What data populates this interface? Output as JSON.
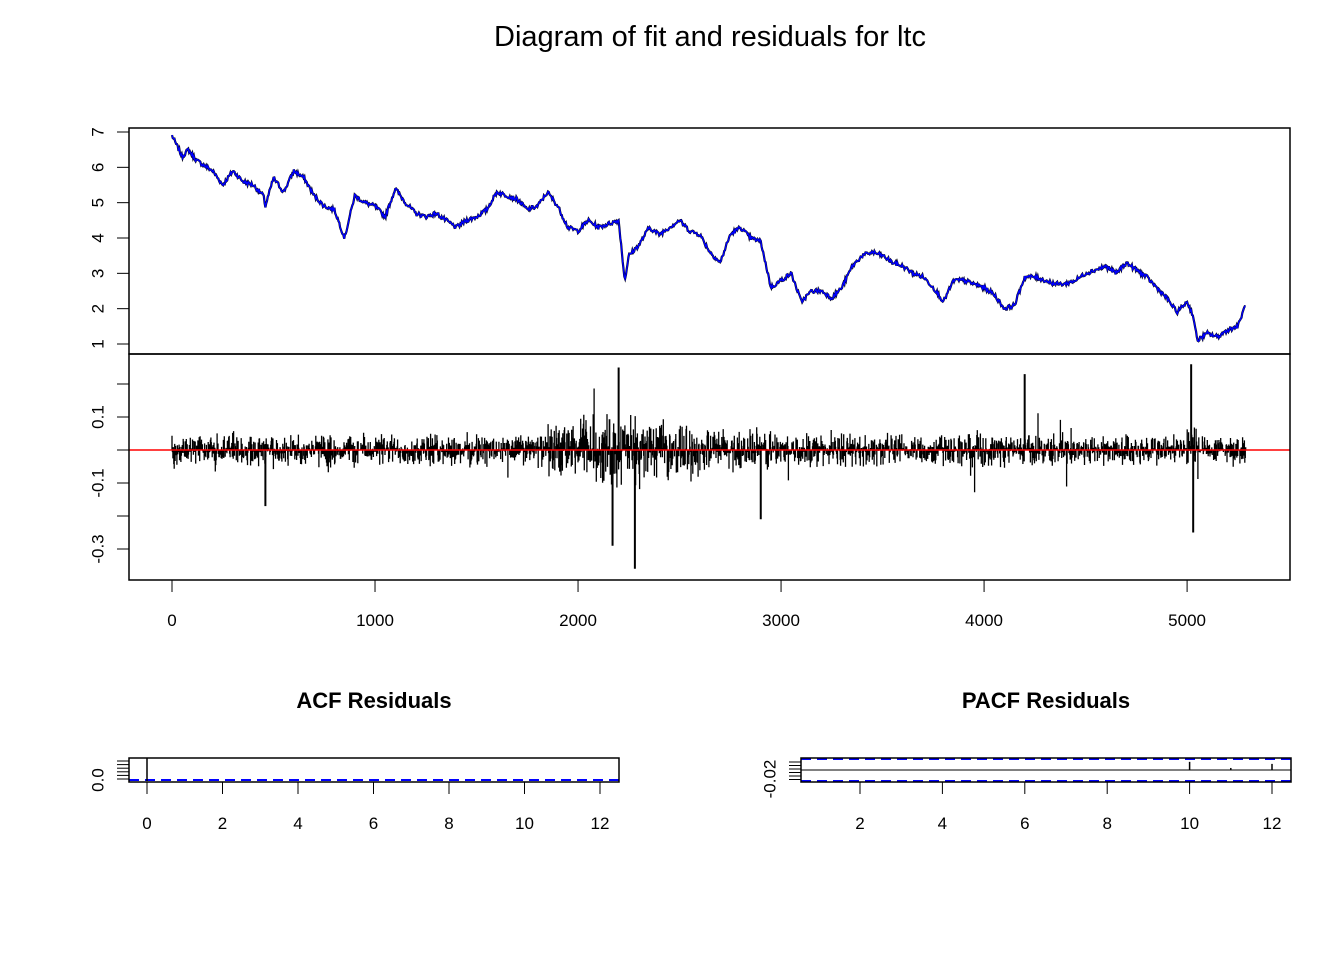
{
  "title": "Diagram of fit and residuals for ltc",
  "colors": {
    "fit": "#0000ff",
    "series": "#000000",
    "zero_line": "#ff0000",
    "ci": "#0000ff",
    "axis": "#000000"
  },
  "chart_data": [
    {
      "id": "fit",
      "type": "line",
      "xlim": [
        0,
        5300
      ],
      "ylim": [
        1,
        7
      ],
      "yticks": [
        "1",
        "2",
        "3",
        "4",
        "5",
        "6",
        "7"
      ],
      "grid": false,
      "series": [
        {
          "role": "actual",
          "color": "#000000"
        },
        {
          "role": "fitted",
          "color": "#0000ff"
        }
      ],
      "x": [
        0,
        50,
        80,
        120,
        200,
        250,
        300,
        350,
        400,
        450,
        460,
        500,
        550,
        600,
        650,
        700,
        750,
        800,
        850,
        900,
        950,
        1000,
        1050,
        1100,
        1150,
        1200,
        1250,
        1300,
        1350,
        1400,
        1450,
        1500,
        1550,
        1600,
        1650,
        1700,
        1750,
        1800,
        1850,
        1900,
        1950,
        2000,
        2050,
        2100,
        2150,
        2200,
        2230,
        2250,
        2300,
        2350,
        2400,
        2450,
        2500,
        2550,
        2600,
        2650,
        2700,
        2750,
        2800,
        2850,
        2900,
        2950,
        3000,
        3050,
        3100,
        3150,
        3200,
        3250,
        3300,
        3350,
        3400,
        3450,
        3500,
        3550,
        3600,
        3650,
        3700,
        3750,
        3800,
        3850,
        3900,
        3950,
        4000,
        4050,
        4100,
        4150,
        4200,
        4250,
        4300,
        4350,
        4400,
        4450,
        4500,
        4550,
        4600,
        4650,
        4700,
        4750,
        4800,
        4850,
        4900,
        4950,
        5000,
        5030,
        5050,
        5100,
        5150,
        5200,
        5250,
        5300
      ],
      "values": [
        6.9,
        6.3,
        6.5,
        6.2,
        5.9,
        5.5,
        5.9,
        5.6,
        5.5,
        5.2,
        4.9,
        5.7,
        5.3,
        5.9,
        5.7,
        5.2,
        4.9,
        4.8,
        4.0,
        5.2,
        5.0,
        4.9,
        4.6,
        5.4,
        5.0,
        4.7,
        4.6,
        4.7,
        4.5,
        4.3,
        4.5,
        4.6,
        4.8,
        5.3,
        5.2,
        5.1,
        4.8,
        4.9,
        5.3,
        4.9,
        4.3,
        4.2,
        4.5,
        4.3,
        4.4,
        4.5,
        2.8,
        3.5,
        3.8,
        4.3,
        4.1,
        4.3,
        4.5,
        4.2,
        4.1,
        3.6,
        3.3,
        4.1,
        4.3,
        4.0,
        3.9,
        2.6,
        2.8,
        3.0,
        2.2,
        2.5,
        2.5,
        2.3,
        2.6,
        3.2,
        3.5,
        3.6,
        3.5,
        3.3,
        3.2,
        3.0,
        2.9,
        2.6,
        2.2,
        2.8,
        2.8,
        2.7,
        2.6,
        2.4,
        2.0,
        2.1,
        2.9,
        2.9,
        2.8,
        2.7,
        2.7,
        2.8,
        3.0,
        3.1,
        3.2,
        3.0,
        3.3,
        3.1,
        2.9,
        2.6,
        2.3,
        1.9,
        2.2,
        1.8,
        1.1,
        1.3,
        1.2,
        1.4,
        1.5,
        2.3
      ]
    },
    {
      "id": "residuals",
      "type": "line",
      "xlabel": "",
      "xlim": [
        0,
        5300
      ],
      "ylim": [
        -0.36,
        0.46
      ],
      "xticks": [
        "0",
        "1000",
        "2000",
        "3000",
        "4000",
        "5000"
      ],
      "yticks": [
        "-0.3",
        "-0.1",
        "0.1"
      ],
      "reference_line": 0,
      "grid": false,
      "notable_spikes": [
        {
          "x": 2280,
          "value": -0.36
        },
        {
          "x": 2170,
          "value": -0.29
        },
        {
          "x": 2200,
          "value": 0.25
        },
        {
          "x": 4200,
          "value": 0.23
        },
        {
          "x": 5020,
          "value": 0.26
        },
        {
          "x": 5030,
          "value": -0.25
        },
        {
          "x": 460,
          "value": -0.17
        },
        {
          "x": 2900,
          "value": -0.21
        }
      ]
    },
    {
      "id": "acf",
      "type": "bar",
      "title": "ACF Residuals",
      "lags": [
        0,
        1,
        2,
        3,
        4,
        5,
        6,
        7,
        8,
        9,
        10,
        11,
        12
      ],
      "values": [
        1,
        0,
        0,
        0,
        0,
        0,
        0,
        0,
        0,
        0,
        0,
        0,
        0
      ],
      "xticks": [
        "0",
        "2",
        "4",
        "6",
        "8",
        "10",
        "12"
      ],
      "yticks": [
        "0.0"
      ],
      "ci": [
        -0.027,
        0.027
      ]
    },
    {
      "id": "pacf",
      "type": "bar",
      "title": "PACF Residuals",
      "lags": [
        1,
        2,
        3,
        4,
        5,
        6,
        7,
        8,
        9,
        10,
        11,
        12
      ],
      "values": [
        0,
        0,
        0,
        0,
        0,
        0,
        0,
        0,
        0,
        0.02,
        0.005,
        0.015
      ],
      "xticks": [
        "2",
        "4",
        "6",
        "8",
        "10",
        "12"
      ],
      "yticks": [
        "-0.02"
      ],
      "ci": [
        -0.027,
        0.027
      ]
    }
  ]
}
